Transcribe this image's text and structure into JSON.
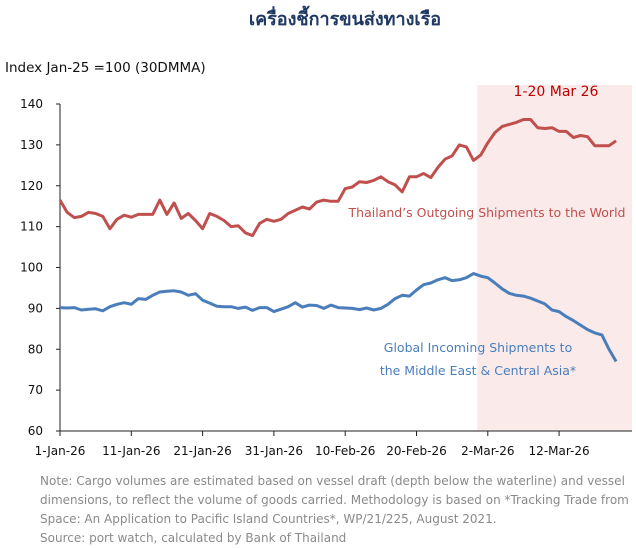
{
  "title": "เครื่องชี้การขนส่งทางเรือ",
  "chart_data": {
    "type": "line",
    "title": "เครื่องชี้การขนส่งทางเรือ",
    "ylabel": "Index Jan-25 =100  (30DMMA)",
    "xlabel": "",
    "ylim": [
      60,
      140
    ],
    "yticks": [
      "60",
      "70",
      "80",
      "90",
      "100",
      "110",
      "120",
      "130",
      "140"
    ],
    "xlim": [
      "2026-01-01",
      "2026-03-20"
    ],
    "xticks": [
      {
        "date": "2026-01-01",
        "label": "1-Jan-26"
      },
      {
        "date": "2026-01-11",
        "label": "11-Jan-26"
      },
      {
        "date": "2026-01-21",
        "label": "21-Jan-26"
      },
      {
        "date": "2026-01-31",
        "label": "31-Jan-26"
      },
      {
        "date": "2026-02-10",
        "label": "10-Feb-26"
      },
      {
        "date": "2026-02-20",
        "label": "20-Feb-26"
      },
      {
        "date": "2026-03-02",
        "label": "2-Mar-26"
      },
      {
        "date": "2026-03-12",
        "label": "12-Mar-26"
      }
    ],
    "grid": false,
    "highlight": {
      "label": "1-20 Mar 26",
      "from": "2026-03-01",
      "to": "2026-03-20",
      "color": "#fbeaea",
      "label_color": "#c00000"
    },
    "x": [
      "2026-01-01",
      "2026-01-02",
      "2026-01-03",
      "2026-01-04",
      "2026-01-05",
      "2026-01-06",
      "2026-01-07",
      "2026-01-08",
      "2026-01-09",
      "2026-01-10",
      "2026-01-11",
      "2026-01-12",
      "2026-01-13",
      "2026-01-14",
      "2026-01-15",
      "2026-01-16",
      "2026-01-17",
      "2026-01-18",
      "2026-01-19",
      "2026-01-20",
      "2026-01-21",
      "2026-01-22",
      "2026-01-23",
      "2026-01-24",
      "2026-01-25",
      "2026-01-26",
      "2026-01-27",
      "2026-01-28",
      "2026-01-29",
      "2026-01-30",
      "2026-01-31",
      "2026-02-01",
      "2026-02-02",
      "2026-02-03",
      "2026-02-04",
      "2026-02-05",
      "2026-02-06",
      "2026-02-07",
      "2026-02-08",
      "2026-02-09",
      "2026-02-10",
      "2026-02-11",
      "2026-02-12",
      "2026-02-13",
      "2026-02-14",
      "2026-02-15",
      "2026-02-16",
      "2026-02-17",
      "2026-02-18",
      "2026-02-19",
      "2026-02-20",
      "2026-02-21",
      "2026-02-22",
      "2026-02-23",
      "2026-02-24",
      "2026-02-25",
      "2026-02-26",
      "2026-02-27",
      "2026-02-28",
      "2026-03-01",
      "2026-03-02",
      "2026-03-03",
      "2026-03-04",
      "2026-03-05",
      "2026-03-06",
      "2026-03-07",
      "2026-03-08",
      "2026-03-09",
      "2026-03-10",
      "2026-03-11",
      "2026-03-12",
      "2026-03-13",
      "2026-03-14",
      "2026-03-15",
      "2026-03-16",
      "2026-03-17",
      "2026-03-18",
      "2026-03-19",
      "2026-03-20"
    ],
    "series": [
      {
        "name": "Thailand’s Outgoing Shipments to the World",
        "color": "#c0504d",
        "values": [
          116.5,
          113.5,
          112.2,
          112.5,
          113.5,
          113.2,
          112.5,
          109.5,
          111.8,
          112.8,
          112.3,
          113,
          113,
          113,
          116.5,
          113,
          115.8,
          112,
          113.2,
          111.5,
          109.5,
          113.2,
          112.5,
          111.5,
          110,
          110.2,
          108.5,
          107.8,
          110.8,
          111.8,
          111.3,
          111.8,
          113.2,
          114,
          114.8,
          114.3,
          116,
          116.5,
          116.2,
          116.2,
          119.3,
          119.7,
          121,
          120.8,
          121.3,
          122.2,
          121,
          120.2,
          118.5,
          122.2,
          122.2,
          123,
          122,
          124.5,
          126.5,
          127.3,
          130,
          129.5,
          126.2,
          127.5,
          130.5,
          133,
          134.5,
          135,
          135.5,
          136.2,
          136.2,
          134.2,
          134,
          134.2,
          133.3,
          133.3,
          131.8,
          132.3,
          132,
          129.8,
          129.8,
          129.8,
          131
        ]
      },
      {
        "name": "Global Incoming Shipments to the Middle East & Central Asia*",
        "name_lines": [
          "Global Incoming Shipments to",
          "the Middle East & Central Asia*"
        ],
        "color": "#4a7ebb",
        "values": [
          90.2,
          90.1,
          90.2,
          89.6,
          89.8,
          89.9,
          89.4,
          90.4,
          91,
          91.4,
          91,
          92.4,
          92.2,
          93.2,
          94,
          94.2,
          94.3,
          94,
          93.2,
          93.6,
          92,
          91.3,
          90.5,
          90.4,
          90.4,
          90,
          90.3,
          89.5,
          90.2,
          90.2,
          89.2,
          89.8,
          90.4,
          91.4,
          90.3,
          90.8,
          90.7,
          90,
          90.8,
          90.2,
          90.1,
          90,
          89.7,
          90.1,
          89.6,
          90,
          91,
          92.4,
          93.2,
          93,
          94.5,
          95.8,
          96.2,
          97,
          97.5,
          96.8,
          97,
          97.5,
          98.5,
          97.9,
          97.5,
          96.2,
          94.8,
          93.7,
          93.2,
          93,
          92.5,
          91.8,
          91.1,
          89.6,
          89.2,
          88,
          87,
          85.9,
          84.8,
          84,
          83.5,
          80,
          77
        ]
      }
    ]
  },
  "notes": [
    "Note: Cargo volumes are estimated based on vessel draft (depth below the waterline) and vessel dimensions, to reflect the volume of goods carried. Methodology is based on *Tracking Trade from Space: An Application to Pacific Island Countries*, WP/21/225, August 2021.",
    "Source: port watch, calculated by Bank of Thailand"
  ]
}
